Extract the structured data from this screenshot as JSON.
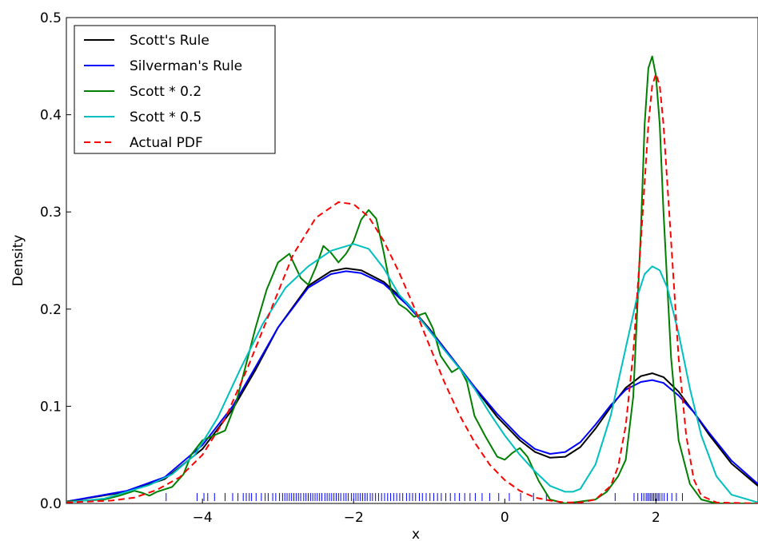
{
  "chart_data": {
    "type": "line",
    "xlabel": "x",
    "ylabel": "Density",
    "xlim": [
      -5.8,
      3.35
    ],
    "ylim": [
      0,
      0.5
    ],
    "xticks": [
      -4,
      -2,
      0,
      2
    ],
    "xtick_labels": [
      "−4",
      "−2",
      "0",
      "2"
    ],
    "yticks": [
      0,
      0.1,
      0.2,
      0.3,
      0.4,
      0.5
    ],
    "ytick_labels": [
      "0.0",
      "0.1",
      "0.2",
      "0.3",
      "0.4",
      "0.5"
    ],
    "grid": false,
    "legend_position": "top-left",
    "series": [
      {
        "name": "Scott's Rule",
        "color": "#000000",
        "style": "solid",
        "x": [
          -5.8,
          -5.0,
          -4.5,
          -4.0,
          -3.6,
          -3.3,
          -3.0,
          -2.6,
          -2.3,
          -2.1,
          -1.9,
          -1.6,
          -1.3,
          -1.0,
          -0.7,
          -0.4,
          -0.1,
          0.2,
          0.4,
          0.6,
          0.8,
          1.0,
          1.2,
          1.4,
          1.6,
          1.8,
          1.95,
          2.1,
          2.3,
          2.5,
          2.7,
          3.0,
          3.35
        ],
        "y": [
          0.002,
          0.012,
          0.025,
          0.056,
          0.097,
          0.137,
          0.181,
          0.224,
          0.239,
          0.242,
          0.24,
          0.228,
          0.207,
          0.18,
          0.15,
          0.119,
          0.089,
          0.065,
          0.053,
          0.047,
          0.048,
          0.058,
          0.077,
          0.099,
          0.119,
          0.131,
          0.134,
          0.13,
          0.115,
          0.094,
          0.071,
          0.041,
          0.018
        ]
      },
      {
        "name": "Silverman's Rule",
        "color": "#0000ff",
        "style": "solid",
        "x": [
          -5.8,
          -5.0,
          -4.5,
          -4.0,
          -3.6,
          -3.3,
          -3.0,
          -2.6,
          -2.3,
          -2.1,
          -1.9,
          -1.6,
          -1.3,
          -1.0,
          -0.7,
          -0.4,
          -0.1,
          0.2,
          0.4,
          0.6,
          0.8,
          1.0,
          1.2,
          1.4,
          1.6,
          1.8,
          1.95,
          2.1,
          2.3,
          2.5,
          2.7,
          3.0,
          3.35
        ],
        "y": [
          0.002,
          0.013,
          0.027,
          0.06,
          0.1,
          0.14,
          0.181,
          0.222,
          0.236,
          0.239,
          0.237,
          0.226,
          0.205,
          0.179,
          0.15,
          0.12,
          0.092,
          0.068,
          0.056,
          0.051,
          0.053,
          0.063,
          0.081,
          0.101,
          0.117,
          0.125,
          0.127,
          0.124,
          0.111,
          0.094,
          0.073,
          0.044,
          0.02
        ]
      },
      {
        "name": "Scott * 0.2",
        "color": "#008000",
        "style": "solid",
        "x": [
          -5.8,
          -5.3,
          -5.1,
          -4.9,
          -4.8,
          -4.7,
          -4.6,
          -4.4,
          -4.25,
          -4.15,
          -4.0,
          -3.85,
          -3.7,
          -3.55,
          -3.4,
          -3.3,
          -3.15,
          -3.0,
          -2.85,
          -2.7,
          -2.6,
          -2.5,
          -2.4,
          -2.3,
          -2.2,
          -2.1,
          -2.0,
          -1.9,
          -1.8,
          -1.7,
          -1.6,
          -1.5,
          -1.4,
          -1.3,
          -1.2,
          -1.05,
          -0.95,
          -0.85,
          -0.7,
          -0.6,
          -0.5,
          -0.4,
          -0.25,
          -0.1,
          0.0,
          0.1,
          0.2,
          0.3,
          0.45,
          0.6,
          0.8,
          1.0,
          1.2,
          1.35,
          1.5,
          1.6,
          1.7,
          1.8,
          1.85,
          1.9,
          1.95,
          2.0,
          2.05,
          2.1,
          2.2,
          2.3,
          2.45,
          2.6,
          2.8,
          3.35
        ],
        "y": [
          0.002,
          0.004,
          0.008,
          0.013,
          0.011,
          0.008,
          0.012,
          0.017,
          0.03,
          0.05,
          0.065,
          0.07,
          0.075,
          0.105,
          0.15,
          0.18,
          0.22,
          0.248,
          0.257,
          0.232,
          0.225,
          0.243,
          0.265,
          0.258,
          0.248,
          0.257,
          0.27,
          0.292,
          0.302,
          0.293,
          0.258,
          0.218,
          0.205,
          0.2,
          0.192,
          0.196,
          0.18,
          0.152,
          0.135,
          0.14,
          0.125,
          0.09,
          0.068,
          0.048,
          0.045,
          0.052,
          0.057,
          0.048,
          0.023,
          0.004,
          0.0,
          0.002,
          0.004,
          0.012,
          0.028,
          0.045,
          0.11,
          0.28,
          0.39,
          0.448,
          0.46,
          0.44,
          0.39,
          0.3,
          0.15,
          0.065,
          0.02,
          0.004,
          0.0,
          0.0
        ]
      },
      {
        "name": "Scott * 0.5",
        "color": "#00bfbf",
        "style": "solid",
        "x": [
          -5.8,
          -5.3,
          -5.0,
          -4.7,
          -4.4,
          -4.1,
          -3.8,
          -3.5,
          -3.2,
          -2.9,
          -2.6,
          -2.3,
          -2.0,
          -1.8,
          -1.6,
          -1.4,
          -1.2,
          -1.0,
          -0.8,
          -0.6,
          -0.4,
          -0.2,
          0.0,
          0.2,
          0.4,
          0.6,
          0.8,
          0.9,
          1.0,
          1.2,
          1.4,
          1.6,
          1.75,
          1.85,
          1.95,
          2.05,
          2.15,
          2.3,
          2.45,
          2.6,
          2.8,
          3.0,
          3.35
        ],
        "y": [
          0.001,
          0.005,
          0.012,
          0.019,
          0.03,
          0.05,
          0.088,
          0.138,
          0.185,
          0.222,
          0.244,
          0.26,
          0.267,
          0.262,
          0.242,
          0.215,
          0.198,
          0.178,
          0.158,
          0.139,
          0.118,
          0.093,
          0.07,
          0.05,
          0.033,
          0.018,
          0.012,
          0.012,
          0.015,
          0.04,
          0.09,
          0.16,
          0.212,
          0.236,
          0.244,
          0.24,
          0.222,
          0.175,
          0.118,
          0.07,
          0.028,
          0.009,
          0.001
        ]
      },
      {
        "name": "Actual PDF",
        "color": "#ff0000",
        "style": "dashed",
        "x": [
          -5.8,
          -5.2,
          -4.9,
          -4.6,
          -4.3,
          -4.0,
          -3.7,
          -3.4,
          -3.1,
          -2.8,
          -2.5,
          -2.2,
          -2.0,
          -1.8,
          -1.6,
          -1.4,
          -1.2,
          -1.0,
          -0.8,
          -0.6,
          -0.4,
          -0.2,
          0.0,
          0.2,
          0.4,
          0.6,
          0.8,
          1.0,
          1.2,
          1.4,
          1.5,
          1.6,
          1.7,
          1.8,
          1.9,
          1.95,
          2.0,
          2.05,
          2.1,
          2.2,
          2.3,
          2.4,
          2.5,
          2.6,
          2.8,
          3.35
        ],
        "y": [
          0.001,
          0.003,
          0.006,
          0.014,
          0.027,
          0.05,
          0.087,
          0.14,
          0.198,
          0.256,
          0.294,
          0.31,
          0.308,
          0.295,
          0.27,
          0.238,
          0.202,
          0.163,
          0.125,
          0.091,
          0.063,
          0.04,
          0.024,
          0.013,
          0.006,
          0.003,
          0.001,
          0.001,
          0.004,
          0.018,
          0.038,
          0.08,
          0.155,
          0.27,
          0.39,
          0.43,
          0.442,
          0.43,
          0.39,
          0.27,
          0.15,
          0.07,
          0.025,
          0.008,
          0.001,
          0.0
        ]
      }
    ],
    "rug": {
      "color": "#0000ff",
      "x": [
        -4.48,
        -4.07,
        -3.98,
        -3.93,
        -3.84,
        -3.7,
        -3.6,
        -3.53,
        -3.46,
        -3.42,
        -3.38,
        -3.35,
        -3.29,
        -3.22,
        -3.17,
        -3.13,
        -3.07,
        -3.03,
        -2.98,
        -2.94,
        -2.91,
        -2.88,
        -2.85,
        -2.82,
        -2.79,
        -2.76,
        -2.73,
        -2.7,
        -2.66,
        -2.63,
        -2.6,
        -2.57,
        -2.54,
        -2.51,
        -2.48,
        -2.45,
        -2.42,
        -2.38,
        -2.35,
        -2.32,
        -2.29,
        -2.26,
        -2.23,
        -2.2,
        -2.17,
        -2.13,
        -2.1,
        -2.07,
        -2.03,
        -2.0,
        -1.97,
        -1.94,
        -1.91,
        -1.88,
        -1.85,
        -1.82,
        -1.78,
        -1.75,
        -1.71,
        -1.67,
        -1.63,
        -1.59,
        -1.55,
        -1.51,
        -1.47,
        -1.43,
        -1.39,
        -1.35,
        -1.3,
        -1.26,
        -1.22,
        -1.18,
        -1.13,
        -1.09,
        -1.04,
        -0.99,
        -0.94,
        -0.89,
        -0.84,
        -0.78,
        -0.72,
        -0.66,
        -0.6,
        -0.53,
        -0.46,
        -0.39,
        -0.3,
        -0.2,
        -0.08,
        0.06,
        0.21,
        0.38,
        0.55,
        1.46,
        1.71,
        1.76,
        1.81,
        1.84,
        1.87,
        1.89,
        1.91,
        1.93,
        1.95,
        1.97,
        1.99,
        2.01,
        2.03,
        2.05,
        2.08,
        2.11,
        2.15,
        2.21,
        2.27,
        2.35
      ]
    }
  }
}
